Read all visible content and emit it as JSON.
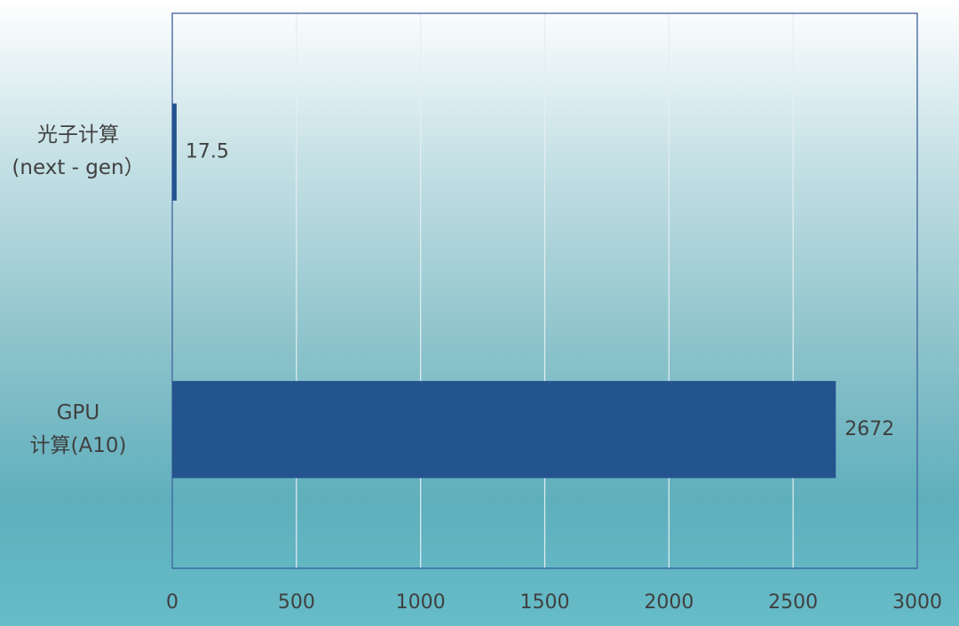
{
  "chart_data": {
    "type": "barh",
    "categories": [
      "光子计算\n(next - gen）",
      "GPU\n计算(A10)"
    ],
    "values": [
      17.5,
      2672
    ],
    "color": "#24548e",
    "xlim": [
      0,
      3000
    ],
    "xticks": [
      0,
      500,
      1000,
      1500,
      2000,
      2500,
      3000
    ],
    "grid": true
  }
}
